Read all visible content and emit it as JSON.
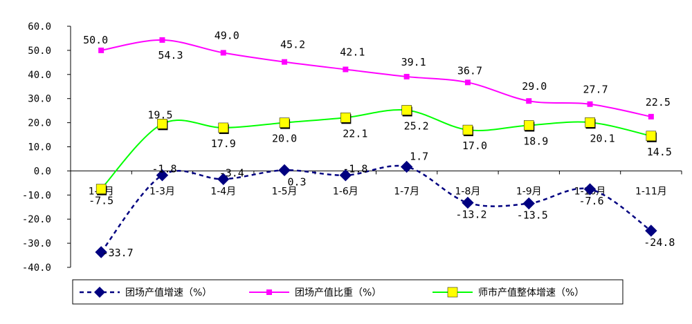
{
  "chart_data": {
    "type": "line",
    "categories": [
      "1-2月",
      "1-3月",
      "1-4月",
      "1-5月",
      "1-6月",
      "1-7月",
      "1-8月",
      "1-9月",
      "1-10月",
      "1-11月"
    ],
    "yticks": [
      "60.0",
      "50.0",
      "40.0",
      "30.0",
      "20.0",
      "10.0",
      "0.0",
      "-10.0",
      "-20.0",
      "-30.0",
      "-40.0"
    ],
    "ylim": [
      -40,
      60
    ],
    "grid": false,
    "legend_position": "bottom",
    "series": [
      {
        "name": "团场产值增速（%）",
        "values": [
          -33.7,
          -1.8,
          -3.4,
          0.3,
          -1.8,
          1.7,
          -13.2,
          -13.5,
          -7.6,
          -24.8
        ],
        "labels": [
          "-33.7",
          "-1.8",
          "-3.4",
          "0.3",
          "-1.8",
          "1.7",
          "-13.2",
          "-13.5",
          "-7.6",
          "-24.8"
        ],
        "color": "#000080",
        "line_style": "dashed",
        "marker": "diamond"
      },
      {
        "name": "团场产值比重（%）",
        "values": [
          50.0,
          54.3,
          49.0,
          45.2,
          42.1,
          39.1,
          36.7,
          29.0,
          27.7,
          22.5
        ],
        "labels": [
          "50.0",
          "54.3",
          "49.0",
          "45.2",
          "42.1",
          "39.1",
          "36.7",
          "29.0",
          "27.7",
          "22.5"
        ],
        "color": "#FF00FF",
        "line_style": "solid",
        "marker": "square"
      },
      {
        "name": "师市产值整体增速（%）",
        "values": [
          -7.5,
          19.5,
          17.9,
          20.0,
          22.1,
          25.2,
          17.0,
          18.9,
          20.1,
          14.5
        ],
        "labels": [
          "-7.5",
          "19.5",
          "17.9",
          "20.0",
          "22.1",
          "25.2",
          "17.0",
          "18.9",
          "20.1",
          "14.5"
        ],
        "color": "#00FF00",
        "marker_color": "#FFFF00",
        "line_style": "solid",
        "marker": "square"
      }
    ]
  }
}
